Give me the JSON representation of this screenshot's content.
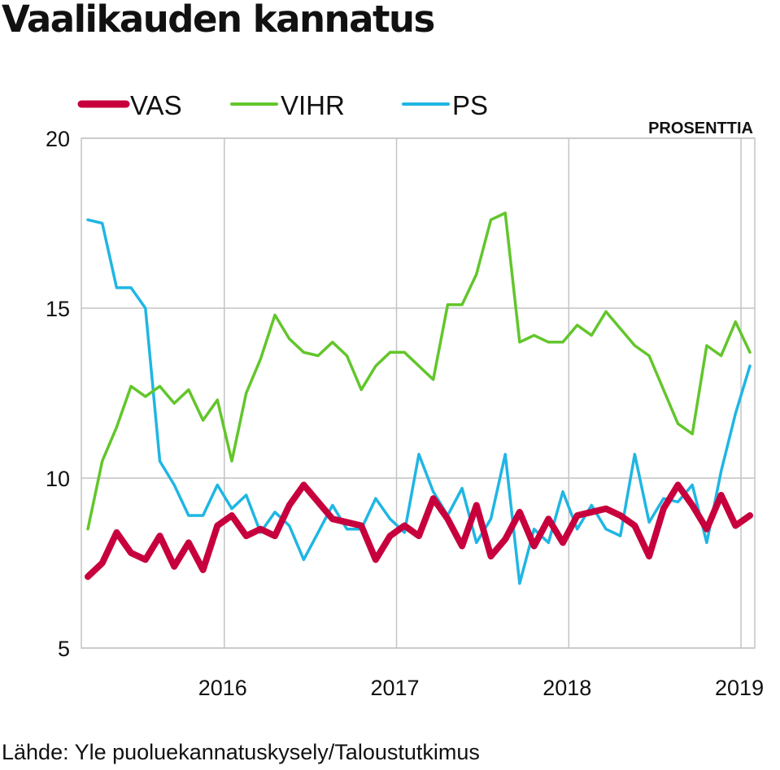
{
  "title": "Vaalikauden kannatus",
  "source": "Lähde: Yle puoluekannatuskysely/Taloustutkimus",
  "chart_data": {
    "type": "line",
    "unit_label": "PROSENTTIA",
    "ylim": [
      5,
      20
    ],
    "yticks": [
      5,
      10,
      15,
      20
    ],
    "xlim": [
      2015.17,
      2019.08
    ],
    "xticks": [
      {
        "value": 2016,
        "label": "2016"
      },
      {
        "value": 2017,
        "label": "2017"
      },
      {
        "value": 2018,
        "label": "2018"
      },
      {
        "value": 2019,
        "label": "2019"
      }
    ],
    "grid": true,
    "legend_position": "top-left",
    "series": [
      {
        "name": "PS",
        "color": "#1fb6e3",
        "emphasis": false,
        "values": [
          17.6,
          17.5,
          15.6,
          15.6,
          15.0,
          10.5,
          9.8,
          8.9,
          8.9,
          9.8,
          9.1,
          9.5,
          8.4,
          9.0,
          8.6,
          7.6,
          8.4,
          9.2,
          8.5,
          8.5,
          9.4,
          8.8,
          8.4,
          10.7,
          9.6,
          8.9,
          9.7,
          8.1,
          8.8,
          10.7,
          6.9,
          8.5,
          8.1,
          9.6,
          8.5,
          9.2,
          8.5,
          8.3,
          10.7,
          8.7,
          9.4,
          9.3,
          9.8,
          8.1,
          10.2,
          11.9,
          13.3
        ]
      },
      {
        "name": "VIHR",
        "color": "#62c62b",
        "emphasis": false,
        "values": [
          8.5,
          10.5,
          11.5,
          12.7,
          12.4,
          12.7,
          12.2,
          12.6,
          11.7,
          12.3,
          10.5,
          12.5,
          13.5,
          14.8,
          14.1,
          13.7,
          13.6,
          14.0,
          13.6,
          12.6,
          13.3,
          13.7,
          13.7,
          13.3,
          12.9,
          15.1,
          15.1,
          16.0,
          17.6,
          17.8,
          14.0,
          14.2,
          14.0,
          14.0,
          14.5,
          14.2,
          14.9,
          14.4,
          13.9,
          13.6,
          12.6,
          11.6,
          11.3,
          13.9,
          13.6,
          14.6,
          13.7
        ]
      },
      {
        "name": "VAS",
        "color": "#c7003d",
        "emphasis": true,
        "values": [
          7.1,
          7.5,
          8.4,
          7.8,
          7.6,
          8.3,
          7.4,
          8.1,
          7.3,
          8.6,
          8.9,
          8.3,
          8.5,
          8.3,
          9.2,
          9.8,
          9.3,
          8.8,
          8.7,
          8.6,
          7.6,
          8.3,
          8.6,
          8.3,
          9.4,
          8.8,
          8.0,
          9.2,
          7.7,
          8.2,
          9.0,
          8.0,
          8.8,
          8.1,
          8.9,
          9.0,
          9.1,
          8.9,
          8.6,
          7.7,
          9.1,
          9.8,
          9.2,
          8.5,
          9.5,
          8.6,
          8.9
        ]
      }
    ],
    "legend": [
      {
        "name": "VAS",
        "color": "#c7003d"
      },
      {
        "name": "VIHR",
        "color": "#62c62b"
      },
      {
        "name": "PS",
        "color": "#1fb6e3"
      }
    ]
  }
}
